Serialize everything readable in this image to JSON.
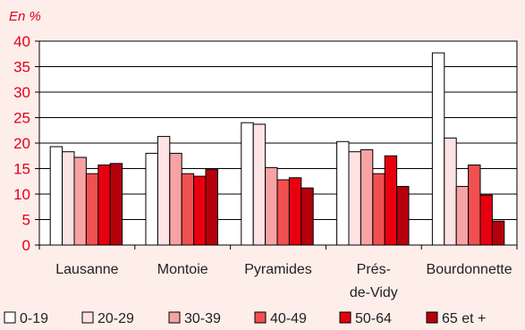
{
  "chart_data": {
    "type": "bar",
    "unit_label": "En %",
    "categories": [
      "Lausanne",
      "Montoie",
      "Pyramides",
      "Prés-de-Vidy",
      "Bourdonnette"
    ],
    "category_lines": [
      [
        "Lausanne"
      ],
      [
        "Montoie"
      ],
      [
        "Pyramides"
      ],
      [
        "Prés-",
        "de-Vidy"
      ],
      [
        "Bourdonnette"
      ]
    ],
    "ylim": [
      0,
      40
    ],
    "yticks": [
      0,
      5,
      10,
      15,
      20,
      25,
      30,
      35,
      40
    ],
    "grid": true,
    "legend_position": "bottom",
    "series": [
      {
        "name": "0-19",
        "color": "#ffffff",
        "values": [
          19.3,
          18.0,
          24.0,
          20.3,
          37.7
        ]
      },
      {
        "name": "20-29",
        "color": "#fde3e3",
        "values": [
          18.3,
          21.3,
          23.7,
          18.3,
          21.0
        ]
      },
      {
        "name": "30-39",
        "color": "#f7a3a3",
        "values": [
          17.2,
          18.0,
          15.2,
          18.7,
          11.5
        ]
      },
      {
        "name": "40-49",
        "color": "#f05050",
        "values": [
          14.0,
          14.0,
          12.8,
          14.0,
          15.7
        ]
      },
      {
        "name": "50-64",
        "color": "#e8000f",
        "values": [
          15.7,
          13.5,
          13.2,
          17.5,
          9.8
        ]
      },
      {
        "name": "65 et +",
        "color": "#b5000c",
        "values": [
          16.0,
          14.8,
          11.2,
          11.5,
          4.7
        ]
      }
    ]
  }
}
